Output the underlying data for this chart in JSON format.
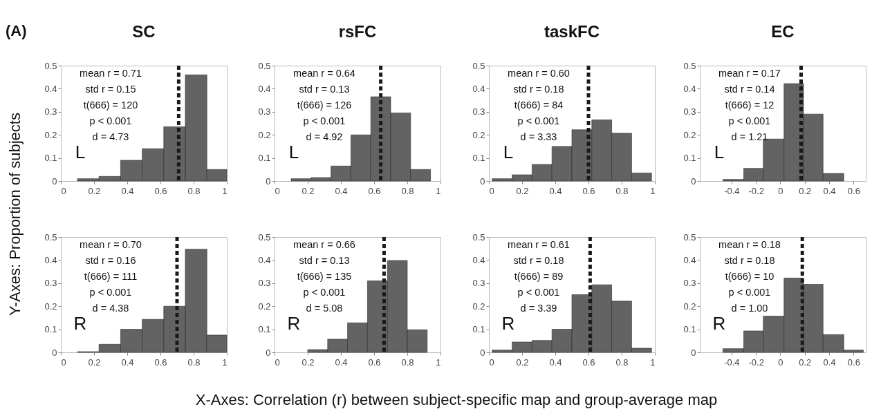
{
  "chart_data": [
    {
      "type": "histogram",
      "title": "SC",
      "xlabel": "X-Axes: Correlation (r) between subject-specific map and group-average map",
      "ylabel": "Y-Axes: Proportion of subjects",
      "bins": [
        0.1,
        0.23,
        0.36,
        0.49,
        0.62,
        0.75,
        0.88,
        1.0
      ],
      "values": [
        0.01,
        0.02,
        0.09,
        0.14,
        0.235,
        0.46,
        0.05
      ],
      "color": "#636363",
      "xlim": [
        0,
        1
      ],
      "xticks": [
        0,
        0.2,
        0.4,
        0.6,
        0.8,
        1
      ],
      "ylim": [
        0,
        0.5
      ],
      "yticks": [
        0,
        0.1,
        0.2,
        0.3,
        0.4,
        0.5
      ],
      "ref_lines": [
        {
          "axis": "x",
          "value": 0.71,
          "color": "#1a1a1a",
          "line_style": "dashed"
        }
      ],
      "annotations": [
        "(A)",
        "mean r = 0.71",
        "std r = 0.15",
        "t(666) = 120",
        "p < 0.001",
        "d = 4.73",
        "L"
      ]
    },
    {
      "type": "histogram",
      "title": "rsFC",
      "bins": [
        0.1,
        0.22,
        0.34,
        0.46,
        0.58,
        0.7,
        0.82,
        0.94
      ],
      "values": [
        0.01,
        0.015,
        0.065,
        0.2,
        0.365,
        0.295,
        0.05
      ],
      "color": "#636363",
      "xlim": [
        0,
        1
      ],
      "xticks": [
        0,
        0.2,
        0.4,
        0.6,
        0.8,
        1
      ],
      "ylim": [
        0,
        0.5
      ],
      "yticks": [
        0,
        0.1,
        0.2,
        0.3,
        0.4,
        0.5
      ],
      "ref_lines": [
        {
          "axis": "x",
          "value": 0.64,
          "color": "#1a1a1a",
          "line_style": "dashed"
        }
      ],
      "annotations": [
        "mean r = 0.64",
        "std r = 0.13",
        "t(666) = 126",
        "p < 0.001",
        "d = 4.92",
        "L"
      ]
    },
    {
      "type": "histogram",
      "title": "taskFC",
      "bins": [
        0.02,
        0.14,
        0.26,
        0.38,
        0.5,
        0.62,
        0.74,
        0.86,
        0.98
      ],
      "values": [
        0.01,
        0.027,
        0.072,
        0.15,
        0.222,
        0.265,
        0.207,
        0.035
      ],
      "color": "#636363",
      "xlim": [
        0,
        1
      ],
      "xticks": [
        0,
        0.2,
        0.4,
        0.6,
        0.8,
        1
      ],
      "ylim": [
        0,
        0.5
      ],
      "yticks": [
        0,
        0.1,
        0.2,
        0.3,
        0.4,
        0.5
      ],
      "ref_lines": [
        {
          "axis": "x",
          "value": 0.6,
          "color": "#1a1a1a",
          "line_style": "dashed"
        }
      ],
      "annotations": [
        "mean r = 0.60",
        "std r = 0.18",
        "t(666) = 84",
        "p < 0.001",
        "d = 3.33",
        "L"
      ]
    },
    {
      "type": "histogram",
      "title": "EC",
      "bins": [
        -0.47,
        -0.3,
        -0.14,
        0.03,
        0.19,
        0.35,
        0.52
      ],
      "values": [
        0.007,
        0.055,
        0.182,
        0.422,
        0.29,
        0.033
      ],
      "color": "#636363",
      "xlim": [
        -0.66,
        0.7
      ],
      "xticks": [
        -0.4,
        -0.2,
        0,
        0.2,
        0.4,
        0.6
      ],
      "ylim": [
        0,
        0.5
      ],
      "yticks": [
        0,
        0.1,
        0.2,
        0.3,
        0.4,
        0.5
      ],
      "ref_lines": [
        {
          "axis": "x",
          "value": 0.17,
          "color": "#1a1a1a",
          "line_style": "dashed"
        }
      ],
      "annotations": [
        "mean r = 0.17",
        "std r = 0.14",
        "t(666) = 12",
        "p < 0.001",
        "d = 1.21",
        "L"
      ]
    },
    {
      "type": "histogram",
      "bins": [
        0.1,
        0.23,
        0.36,
        0.49,
        0.62,
        0.75,
        0.88,
        1.0
      ],
      "values": [
        0.003,
        0.035,
        0.1,
        0.143,
        0.2,
        0.447,
        0.075
      ],
      "color": "#636363",
      "xlim": [
        0,
        1
      ],
      "xticks": [
        0,
        0.2,
        0.4,
        0.6,
        0.8,
        1
      ],
      "ylim": [
        0,
        0.5
      ],
      "yticks": [
        0,
        0.1,
        0.2,
        0.3,
        0.4,
        0.5
      ],
      "ref_lines": [
        {
          "axis": "x",
          "value": 0.7,
          "color": "#1a1a1a",
          "line_style": "dashed"
        }
      ],
      "annotations": [
        "mean r = 0.70",
        "std r = 0.16",
        "t(666) = 111",
        "p < 0.001",
        "d = 4.38",
        "R"
      ]
    },
    {
      "type": "histogram",
      "bins": [
        0.2,
        0.32,
        0.44,
        0.56,
        0.68,
        0.8,
        0.92
      ],
      "values": [
        0.012,
        0.057,
        0.128,
        0.31,
        0.398,
        0.098
      ],
      "color": "#636363",
      "xlim": [
        0,
        1
      ],
      "xticks": [
        0,
        0.2,
        0.4,
        0.6,
        0.8,
        1
      ],
      "ylim": [
        0,
        0.5
      ],
      "yticks": [
        0,
        0.1,
        0.2,
        0.3,
        0.4,
        0.5
      ],
      "ref_lines": [
        {
          "axis": "x",
          "value": 0.66,
          "color": "#1a1a1a",
          "line_style": "dashed"
        }
      ],
      "annotations": [
        "mean r = 0.66",
        "std r = 0.13",
        "t(666) = 135",
        "p < 0.001",
        "d = 5.08",
        "R"
      ]
    },
    {
      "type": "histogram",
      "bins": [
        0.02,
        0.14,
        0.26,
        0.38,
        0.5,
        0.62,
        0.74,
        0.86,
        0.98
      ],
      "values": [
        0.01,
        0.045,
        0.052,
        0.1,
        0.25,
        0.293,
        0.222,
        0.018
      ],
      "color": "#636363",
      "xlim": [
        0,
        1
      ],
      "xticks": [
        0,
        0.2,
        0.4,
        0.6,
        0.8,
        1
      ],
      "ylim": [
        0,
        0.5
      ],
      "yticks": [
        0,
        0.1,
        0.2,
        0.3,
        0.4,
        0.5
      ],
      "ref_lines": [
        {
          "axis": "x",
          "value": 0.61,
          "color": "#1a1a1a",
          "line_style": "dashed"
        }
      ],
      "annotations": [
        "mean r = 0.61",
        "std r = 0.18",
        "t(666) = 89",
        "p < 0.001",
        "d = 3.39",
        "R"
      ]
    },
    {
      "type": "histogram",
      "bins": [
        -0.47,
        -0.3,
        -0.14,
        0.03,
        0.19,
        0.35,
        0.52,
        0.68
      ],
      "values": [
        0.016,
        0.093,
        0.157,
        0.322,
        0.295,
        0.077,
        0.01
      ],
      "color": "#636363",
      "xlim": [
        -0.66,
        0.7
      ],
      "xticks": [
        -0.4,
        -0.2,
        0,
        0.2,
        0.4,
        0.6
      ],
      "ylim": [
        0,
        0.5
      ],
      "yticks": [
        0,
        0.1,
        0.2,
        0.3,
        0.4,
        0.5
      ],
      "ref_lines": [
        {
          "axis": "x",
          "value": 0.18,
          "color": "#1a1a1a",
          "line_style": "dashed"
        }
      ],
      "annotations": [
        "mean r = 0.18",
        "std r = 0.18",
        "t(666) = 10",
        "p < 0.001",
        "d = 1.00",
        "R"
      ]
    }
  ]
}
